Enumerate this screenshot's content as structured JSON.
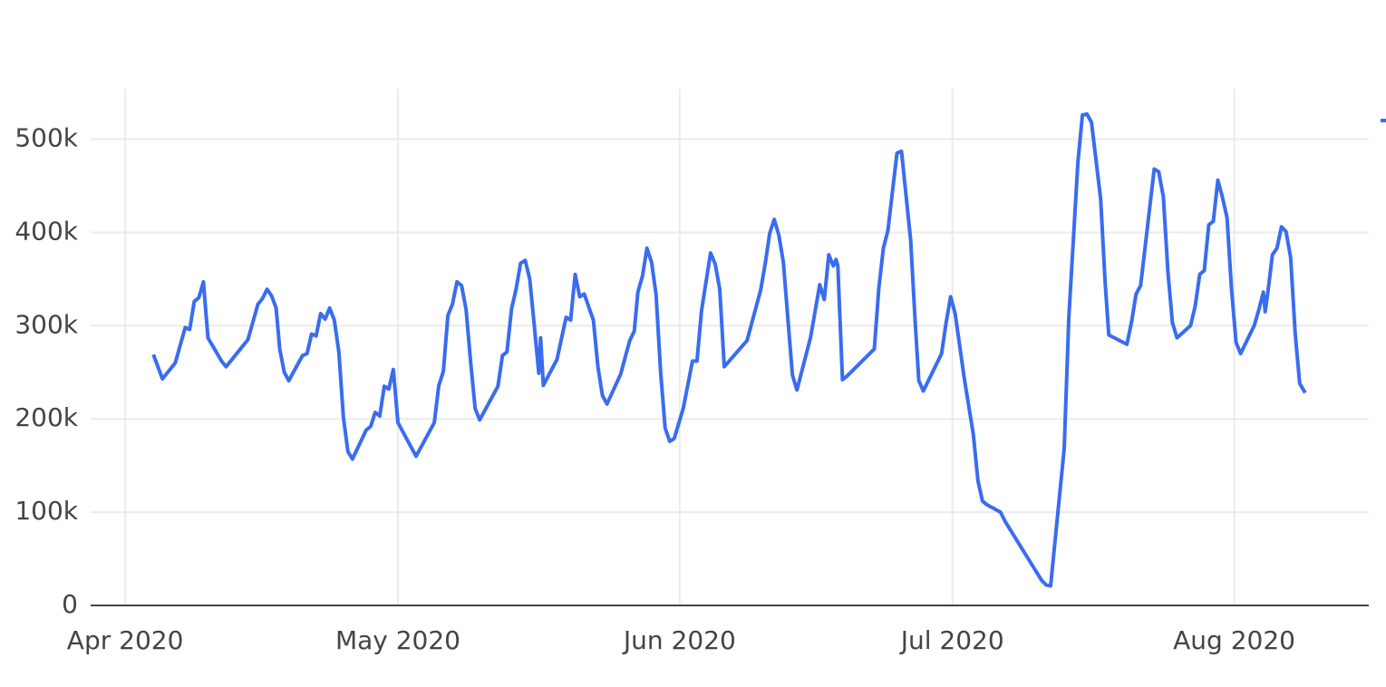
{
  "chart_data": {
    "type": "line",
    "color": "#3a6cf0",
    "x": [
      3.1,
      4.1,
      5.5,
      6.6,
      7.1,
      7.6,
      8.1,
      8.6,
      9.1,
      10.6,
      11.1,
      13.5,
      14.6,
      15.1,
      15.6,
      16.1,
      16.6,
      17.0,
      17.5,
      18.0,
      19.5,
      20.0,
      20.5,
      21.0,
      21.5,
      22.0,
      22.5,
      23.0,
      23.5,
      24.0,
      24.5,
      25.0,
      26.5,
      27.0,
      27.5,
      28.0,
      28.5,
      29.0,
      29.5,
      30.0,
      32.0,
      34.0,
      34.5,
      35.0,
      35.5,
      36.0,
      36.5,
      37.0,
      37.5,
      38.0,
      38.5,
      39.0,
      41.0,
      41.5,
      42.0,
      42.5,
      43.0,
      43.5,
      44.0,
      44.5,
      45.0,
      45.5,
      45.7,
      46.0,
      47.5,
      48.5,
      49.0,
      49.5,
      50.0,
      50.5,
      51.5,
      52.0,
      52.5,
      53.0,
      54.5,
      55.5,
      56.0,
      56.4,
      56.9,
      57.4,
      57.9,
      58.4,
      58.9,
      59.4,
      59.9,
      60.4,
      61.4,
      62.4,
      62.9,
      63.4,
      64.4,
      64.9,
      65.4,
      65.9,
      68.4,
      69.9,
      70.4,
      70.9,
      71.4,
      71.9,
      72.4,
      72.9,
      73.4,
      73.9,
      75.4,
      76.4,
      76.9,
      77.4,
      77.9,
      78.2,
      78.4,
      78.9,
      79.4,
      82.4,
      82.9,
      83.4,
      83.9,
      84.9,
      85.4,
      86.4,
      86.9,
      87.3,
      87.8,
      89.8,
      90.3,
      90.8,
      91.3,
      92.3,
      93.3,
      93.8,
      94.3,
      94.8,
      96.3,
      96.8,
      100.8,
      101.3,
      101.8,
      103.3,
      103.8,
      104.8,
      105.3,
      105.8,
      106.3,
      107.3,
      107.8,
      108.2,
      110.2,
      110.7,
      111.2,
      111.7,
      113.2,
      113.7,
      114.2,
      114.7,
      115.2,
      115.7,
      117.2,
      117.7,
      118.2,
      118.7,
      119.2,
      119.7,
      120.2,
      120.7,
      121.2,
      121.7,
      122.2,
      122.7,
      124.2,
      124.7,
      125.2,
      125.4,
      125.7,
      126.2,
      126.7,
      127.2,
      127.7,
      128.2,
      128.7,
      129.2,
      129.8
    ],
    "values": [
      269000,
      243000,
      260000,
      298000,
      296000,
      326000,
      330000,
      347000,
      287000,
      262000,
      256000,
      285000,
      323000,
      329000,
      339000,
      332000,
      319000,
      275000,
      250000,
      241000,
      268000,
      270000,
      291000,
      289000,
      313000,
      307000,
      319000,
      306000,
      272000,
      202000,
      165000,
      157000,
      188000,
      192000,
      207000,
      203000,
      235000,
      232000,
      253000,
      196000,
      160000,
      196000,
      236000,
      251000,
      311000,
      323000,
      347000,
      343000,
      317000,
      261000,
      211000,
      199000,
      235000,
      268000,
      272000,
      318000,
      339000,
      367000,
      370000,
      350000,
      300000,
      249000,
      287000,
      236000,
      264000,
      309000,
      306000,
      355000,
      331000,
      334000,
      306000,
      256000,
      225000,
      216000,
      248000,
      284000,
      294000,
      336000,
      353000,
      383000,
      368000,
      333000,
      250000,
      190000,
      176000,
      179000,
      212000,
      262000,
      262000,
      316000,
      378000,
      366000,
      339000,
      256000,
      284000,
      338000,
      366000,
      399000,
      414000,
      397000,
      368000,
      307000,
      247000,
      231000,
      288000,
      344000,
      328000,
      376000,
      364000,
      371000,
      364000,
      242000,
      246000,
      275000,
      340000,
      383000,
      402000,
      485000,
      487000,
      392000,
      304000,
      241000,
      230000,
      270000,
      303000,
      331000,
      313000,
      244000,
      183000,
      134000,
      112000,
      108000,
      100000,
      90000,
      27000,
      22000,
      21000,
      168000,
      309000,
      475000,
      526000,
      527000,
      518000,
      436000,
      346000,
      290000,
      280000,
      304000,
      334000,
      343000,
      468000,
      465000,
      438000,
      358000,
      303000,
      287000,
      300000,
      321000,
      355000,
      359000,
      408000,
      412000,
      456000,
      438000,
      416000,
      339000,
      282000,
      270000,
      300000,
      317000,
      336000,
      315000,
      336000,
      376000,
      383000,
      406000,
      401000,
      373000,
      292000,
      238000,
      228000
    ],
    "xlim": [
      -3.8,
      136.8
    ],
    "xticks": [
      {
        "value": 0,
        "label": "Apr 2020"
      },
      {
        "value": 30,
        "label": "May 2020"
      },
      {
        "value": 61,
        "label": "Jun 2020"
      },
      {
        "value": 91,
        "label": "Jul 2020"
      },
      {
        "value": 122,
        "label": "Aug 2020"
      }
    ],
    "ylim": [
      0,
      554000
    ],
    "yticks": [
      0,
      {
        "value": 100000,
        "label": "100k"
      },
      {
        "value": 200000,
        "label": "200k"
      },
      {
        "value": 300000,
        "label": "300k"
      },
      {
        "value": 400000,
        "label": "400k"
      },
      {
        "value": 500000,
        "label": "500k"
      }
    ],
    "grid": true
  }
}
